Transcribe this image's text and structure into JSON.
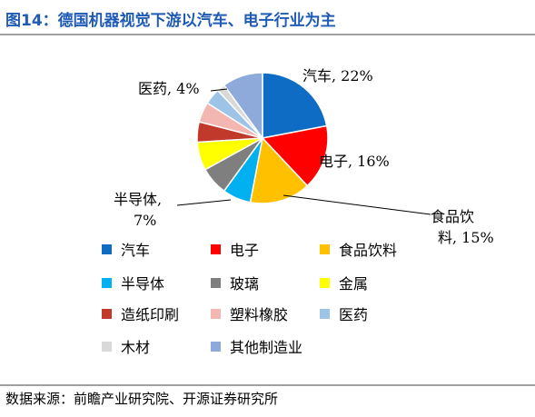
{
  "figure": {
    "title": "图14：德国机器视觉下游以汽车、电子行业为主",
    "source": "数据来源：前瞻产业研究院、开源证券研究所"
  },
  "colors": {
    "title": "#1f5bb5",
    "rule": "#a0a0a0"
  },
  "chart_data": {
    "type": "pie",
    "title": "",
    "legend_placement": "bottom",
    "series": [
      {
        "name": "汽车",
        "value": 22,
        "color": "#0e6cc4"
      },
      {
        "name": "电子",
        "value": 16,
        "color": "#ff0000"
      },
      {
        "name": "食品饮料",
        "value": 15,
        "color": "#ffc000"
      },
      {
        "name": "半导体",
        "value": 7,
        "color": "#00b0f0"
      },
      {
        "name": "玻璃",
        "value": 7,
        "color": "#7f7f7f"
      },
      {
        "name": "金属",
        "value": 7,
        "color": "#ffff00"
      },
      {
        "name": "造纸印刷",
        "value": 5,
        "color": "#c0392b"
      },
      {
        "name": "塑料橡胶",
        "value": 5,
        "color": "#f4b6b0"
      },
      {
        "name": "医药",
        "value": 4,
        "color": "#9dc3e6"
      },
      {
        "name": "木材",
        "value": 2,
        "color": "#d9d9d9"
      },
      {
        "name": "其他制造业",
        "value": 10,
        "color": "#8eaadb"
      }
    ],
    "data_labels": [
      {
        "series": "汽车",
        "lines": [
          "汽车, 22%"
        ]
      },
      {
        "series": "电子",
        "lines": [
          "电子, 16%"
        ]
      },
      {
        "series": "食品饮料",
        "lines": [
          "食品饮",
          "料, 15%"
        ]
      },
      {
        "series": "半导体",
        "lines": [
          "半导体,",
          "7%"
        ]
      },
      {
        "series": "医药",
        "lines": [
          "医药, 4%"
        ]
      }
    ]
  }
}
